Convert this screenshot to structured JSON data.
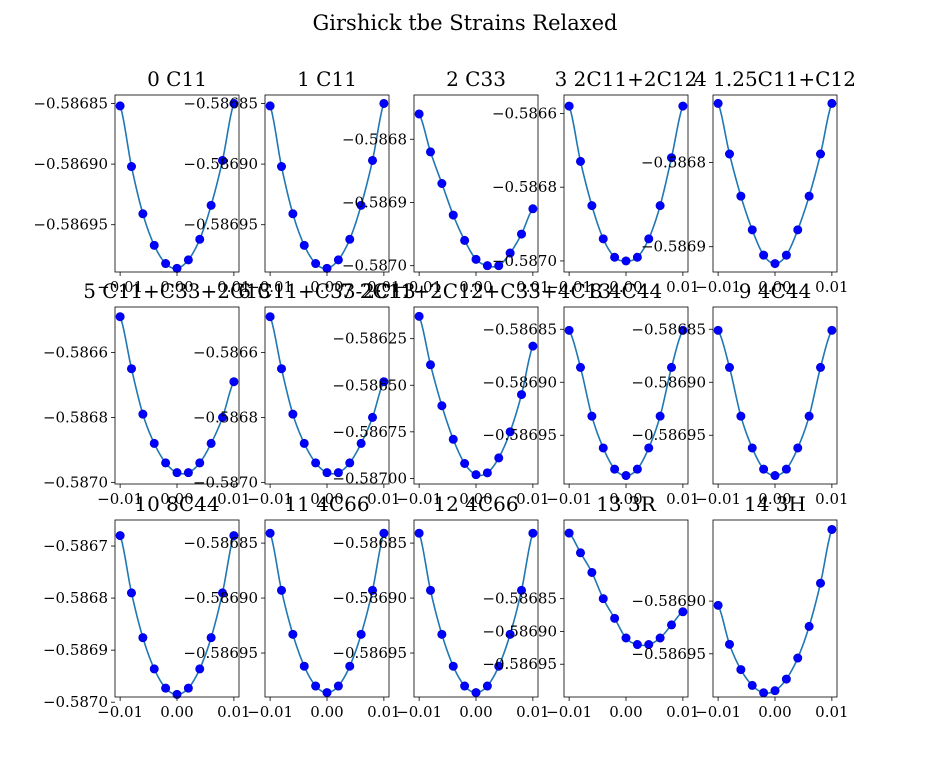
{
  "figure": {
    "title": "Girshick tbe Strains Relaxed"
  },
  "chart_data": [
    {
      "type": "line",
      "title": "0 C11",
      "x": [
        -0.01,
        -0.008,
        -0.006,
        -0.004,
        -0.002,
        0.0,
        0.002,
        0.004,
        0.006,
        0.008,
        0.01
      ],
      "y": [
        -0.586852,
        -0.586902,
        -0.586941,
        -0.586967,
        -0.586982,
        -0.586986,
        -0.586979,
        -0.586962,
        -0.586934,
        -0.586897,
        -0.58685
      ],
      "ylim": [
        -0.586989,
        -0.586843
      ],
      "yticks": [
        -0.58685,
        -0.5869,
        -0.58695
      ],
      "ytick_labels": [
        "−0.58685",
        "−0.58690",
        "−0.58695"
      ],
      "xticks": [
        -0.01,
        0.0,
        0.01
      ],
      "xtick_labels": [
        "−0.01",
        "0.00",
        "0.01"
      ]
    },
    {
      "type": "line",
      "title": "1 C11",
      "x": [
        -0.01,
        -0.008,
        -0.006,
        -0.004,
        -0.002,
        0.0,
        0.002,
        0.004,
        0.006,
        0.008,
        0.01
      ],
      "y": [
        -0.586852,
        -0.586902,
        -0.586941,
        -0.586967,
        -0.586982,
        -0.586986,
        -0.586979,
        -0.586962,
        -0.586934,
        -0.586897,
        -0.58685
      ],
      "ylim": [
        -0.586989,
        -0.586843
      ],
      "yticks": [
        -0.58685,
        -0.5869,
        -0.58695
      ],
      "ytick_labels": [
        "−0.58685",
        "−0.58690",
        "−0.58695"
      ],
      "xticks": [
        -0.01,
        0.0,
        0.01
      ],
      "xtick_labels": [
        "−0.01",
        "0.00",
        "0.01"
      ]
    },
    {
      "type": "line",
      "title": "2 C33",
      "x": [
        -0.01,
        -0.008,
        -0.006,
        -0.004,
        -0.002,
        0.0,
        0.002,
        0.004,
        0.006,
        0.008,
        0.01
      ],
      "y": [
        -0.58676,
        -0.58682,
        -0.58687,
        -0.58692,
        -0.58696,
        -0.58699,
        -0.587,
        -0.587,
        -0.58698,
        -0.58695,
        -0.58691
      ],
      "ylim": [
        -0.58701,
        -0.58673
      ],
      "yticks": [
        -0.5868,
        -0.5869,
        -0.587
      ],
      "ytick_labels": [
        "−0.5868",
        "−0.5869",
        "−0.5870"
      ],
      "xticks": [
        -0.01,
        0.0,
        0.01
      ],
      "xtick_labels": [
        "−0.01",
        "0.00",
        "0.01"
      ]
    },
    {
      "type": "line",
      "title": "3 2C11+2C12",
      "x": [
        -0.01,
        -0.008,
        -0.006,
        -0.004,
        -0.002,
        0.0,
        0.002,
        0.004,
        0.006,
        0.008,
        0.01
      ],
      "y": [
        -0.58658,
        -0.58673,
        -0.58685,
        -0.58694,
        -0.58699,
        -0.587,
        -0.58699,
        -0.58694,
        -0.58685,
        -0.58672,
        -0.58658
      ],
      "ylim": [
        -0.58703,
        -0.58655
      ],
      "yticks": [
        -0.5866,
        -0.5868,
        -0.587
      ],
      "ytick_labels": [
        "−0.5866",
        "−0.5868",
        "−0.5870"
      ],
      "xticks": [
        -0.01,
        0.0,
        0.01
      ],
      "xtick_labels": [
        "−0.01",
        "0.00",
        "0.01"
      ]
    },
    {
      "type": "line",
      "title": "4 1.25C11+C12",
      "x": [
        -0.01,
        -0.008,
        -0.006,
        -0.004,
        -0.002,
        0.0,
        0.002,
        0.004,
        0.006,
        0.008,
        0.01
      ],
      "y": [
        -0.58673,
        -0.58679,
        -0.58684,
        -0.58688,
        -0.58691,
        -0.58692,
        -0.58691,
        -0.58688,
        -0.58684,
        -0.58679,
        -0.58673
      ],
      "ylim": [
        -0.58693,
        -0.58672
      ],
      "yticks": [
        -0.5868,
        -0.5869
      ],
      "ytick_labels": [
        "−0.5868",
        "−0.5869"
      ],
      "xticks": [
        -0.01,
        0.0,
        0.01
      ],
      "xtick_labels": [
        "−0.01",
        "0.00",
        "0.01"
      ]
    },
    {
      "type": "line",
      "title": "5 C11+C33+2C13",
      "x": [
        -0.01,
        -0.008,
        -0.006,
        -0.004,
        -0.002,
        0.0,
        0.002,
        0.004,
        0.006,
        0.008,
        0.01
      ],
      "y": [
        -0.58649,
        -0.58665,
        -0.58679,
        -0.58688,
        -0.58694,
        -0.58697,
        -0.58697,
        -0.58694,
        -0.58688,
        -0.5868,
        -0.58669
      ],
      "ylim": [
        -0.587005,
        -0.58646
      ],
      "yticks": [
        -0.5866,
        -0.5868,
        -0.587
      ],
      "ytick_labels": [
        "−0.5866",
        "−0.5868",
        "−0.5870"
      ],
      "xticks": [
        -0.01,
        0.0,
        0.01
      ],
      "xtick_labels": [
        "−0.01",
        "0.00",
        "0.01"
      ]
    },
    {
      "type": "line",
      "title": "6 C11+C33-2C13",
      "x": [
        -0.01,
        -0.008,
        -0.006,
        -0.004,
        -0.002,
        0.0,
        0.002,
        0.004,
        0.006,
        0.008,
        0.01
      ],
      "y": [
        -0.58649,
        -0.58665,
        -0.58679,
        -0.58688,
        -0.58694,
        -0.58697,
        -0.58697,
        -0.58694,
        -0.58688,
        -0.5868,
        -0.58669
      ],
      "ylim": [
        -0.587005,
        -0.58646
      ],
      "yticks": [
        -0.5866,
        -0.5868,
        -0.587
      ],
      "ytick_labels": [
        "−0.5866",
        "−0.5868",
        "−0.5870"
      ],
      "xticks": [
        -0.01,
        0.0,
        0.01
      ],
      "xtick_labels": [
        "−0.01",
        "0.00",
        "0.01"
      ]
    },
    {
      "type": "line",
      "title": "7 2C11+2C12+C33+4C13",
      "x": [
        -0.01,
        -0.008,
        -0.006,
        -0.004,
        -0.002,
        0.0,
        0.002,
        0.004,
        0.006,
        0.008,
        0.01
      ],
      "y": [
        -0.58613,
        -0.58639,
        -0.58661,
        -0.58679,
        -0.58692,
        -0.58698,
        -0.58697,
        -0.58689,
        -0.58675,
        -0.58655,
        -0.58629
      ],
      "ylim": [
        -0.58703,
        -0.58608
      ],
      "yticks": [
        -0.58625,
        -0.5865,
        -0.58675,
        -0.587
      ],
      "ytick_labels": [
        "−0.58625",
        "−0.58650",
        "−0.58675",
        "−0.58700"
      ],
      "xticks": [
        -0.01,
        0.0,
        0.01
      ],
      "xtick_labels": [
        "−0.01",
        "0.00",
        "0.01"
      ]
    },
    {
      "type": "line",
      "title": "8 4C44",
      "x": [
        -0.01,
        -0.008,
        -0.006,
        -0.004,
        -0.002,
        0.0,
        0.002,
        0.004,
        0.006,
        0.008,
        0.01
      ],
      "y": [
        -0.586851,
        -0.586886,
        -0.586932,
        -0.586962,
        -0.586982,
        -0.586988,
        -0.586982,
        -0.586962,
        -0.586932,
        -0.586886,
        -0.586851
      ],
      "ylim": [
        -0.586996,
        -0.586829
      ],
      "yticks": [
        -0.58685,
        -0.5869,
        -0.58695
      ],
      "ytick_labels": [
        "−0.58685",
        "−0.58690",
        "−0.58695"
      ],
      "xticks": [
        -0.01,
        0.0,
        0.01
      ],
      "xtick_labels": [
        "−0.01",
        "0.00",
        "0.01"
      ]
    },
    {
      "type": "line",
      "title": "9 4C44",
      "x": [
        -0.01,
        -0.008,
        -0.006,
        -0.004,
        -0.002,
        0.0,
        0.002,
        0.004,
        0.006,
        0.008,
        0.01
      ],
      "y": [
        -0.586851,
        -0.586886,
        -0.586932,
        -0.586962,
        -0.586982,
        -0.586988,
        -0.586982,
        -0.586962,
        -0.586932,
        -0.586886,
        -0.586851
      ],
      "ylim": [
        -0.586996,
        -0.586829
      ],
      "yticks": [
        -0.58685,
        -0.5869,
        -0.58695
      ],
      "ytick_labels": [
        "−0.58685",
        "−0.58690",
        "−0.58695"
      ],
      "xticks": [
        -0.01,
        0.0,
        0.01
      ],
      "xtick_labels": [
        "−0.01",
        "0.00",
        "0.01"
      ]
    },
    {
      "type": "line",
      "title": "10 8C44",
      "x": [
        -0.01,
        -0.008,
        -0.006,
        -0.004,
        -0.002,
        0.0,
        0.002,
        0.004,
        0.006,
        0.008,
        0.01
      ],
      "y": [
        -0.58668,
        -0.58679,
        -0.586876,
        -0.586936,
        -0.586973,
        -0.586985,
        -0.586973,
        -0.586936,
        -0.586876,
        -0.58679,
        -0.58668
      ],
      "ylim": [
        -0.58699,
        -0.58665
      ],
      "yticks": [
        -0.5867,
        -0.5868,
        -0.5869,
        -0.587
      ],
      "ytick_labels": [
        "−0.5867",
        "−0.5868",
        "−0.5869",
        "−0.5870"
      ],
      "xticks": [
        -0.01,
        0.0,
        0.01
      ],
      "xtick_labels": [
        "−0.01",
        "0.00",
        "0.01"
      ]
    },
    {
      "type": "line",
      "title": "11 4C66",
      "x": [
        -0.01,
        -0.008,
        -0.006,
        -0.004,
        -0.002,
        0.0,
        0.002,
        0.004,
        0.006,
        0.008,
        0.01
      ],
      "y": [
        -0.586841,
        -0.586893,
        -0.586933,
        -0.586962,
        -0.58698,
        -0.586986,
        -0.58698,
        -0.586962,
        -0.586933,
        -0.586893,
        -0.586841
      ],
      "ylim": [
        -0.58699,
        -0.586829
      ],
      "yticks": [
        -0.58685,
        -0.5869,
        -0.58695
      ],
      "ytick_labels": [
        "−0.58685",
        "−0.58690",
        "−0.58695"
      ],
      "xticks": [
        -0.01,
        0.0,
        0.01
      ],
      "xtick_labels": [
        "−0.01",
        "0.00",
        "0.01"
      ]
    },
    {
      "type": "line",
      "title": "12 4C66",
      "x": [
        -0.01,
        -0.008,
        -0.006,
        -0.004,
        -0.002,
        0.0,
        0.002,
        0.004,
        0.006,
        0.008,
        0.01
      ],
      "y": [
        -0.586841,
        -0.586893,
        -0.586933,
        -0.586962,
        -0.58698,
        -0.586986,
        -0.58698,
        -0.586962,
        -0.586933,
        -0.586893,
        -0.586841
      ],
      "ylim": [
        -0.58699,
        -0.586829
      ],
      "yticks": [
        -0.58685,
        -0.5869,
        -0.58695
      ],
      "ytick_labels": [
        "−0.58685",
        "−0.58690",
        "−0.58695"
      ],
      "xticks": [
        -0.01,
        0.0,
        0.01
      ],
      "xtick_labels": [
        "−0.01",
        "0.00",
        "0.01"
      ]
    },
    {
      "type": "line",
      "title": "13 3R",
      "x": [
        -0.01,
        -0.008,
        -0.006,
        -0.004,
        -0.002,
        0.0,
        0.002,
        0.004,
        0.006,
        0.008,
        0.01
      ],
      "y": [
        -0.58675,
        -0.58678,
        -0.58681,
        -0.58685,
        -0.58688,
        -0.58691,
        -0.58692,
        -0.58692,
        -0.58691,
        -0.58689,
        -0.58687
      ],
      "ylim": [
        -0.587,
        -0.58673
      ],
      "yticks": [
        -0.58685,
        -0.5869,
        -0.58695
      ],
      "ytick_labels": [
        "−0.58685",
        "−0.58690",
        "−0.58695"
      ],
      "xticks": [
        -0.01,
        0.0,
        0.01
      ],
      "xtick_labels": [
        "−0.01",
        "0.00",
        "0.01"
      ]
    },
    {
      "type": "line",
      "title": "14 3H",
      "x": [
        -0.01,
        -0.008,
        -0.006,
        -0.004,
        -0.002,
        0.0,
        0.002,
        0.004,
        0.006,
        0.008,
        0.01
      ],
      "y": [
        -0.586904,
        -0.586941,
        -0.586965,
        -0.58698,
        -0.586987,
        -0.586985,
        -0.586974,
        -0.586954,
        -0.586924,
        -0.586883,
        -0.586832
      ],
      "ylim": [
        -0.586991,
        -0.586823
      ],
      "yticks": [
        -0.5869,
        -0.58695
      ],
      "ytick_labels": [
        "−0.58690",
        "−0.58695"
      ],
      "xticks": [
        -0.01,
        0.0,
        0.01
      ],
      "xtick_labels": [
        "−0.01",
        "0.00",
        "0.01"
      ]
    }
  ]
}
